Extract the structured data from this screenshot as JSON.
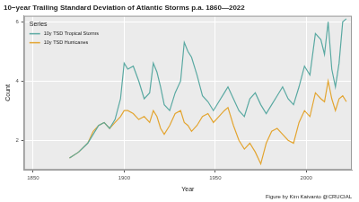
{
  "chart_data": {
    "type": "line",
    "title": "10−year Trailing Standard Deviation of Atlantic Storms p.a. 1860—2022",
    "x_label": "Year",
    "y_label": "Count",
    "legend_title": "Series",
    "caption": "Figure by Kim Kaivanto @CRUCIAL",
    "x": [
      1870,
      1875,
      1880,
      1883,
      1886,
      1889,
      1892,
      1895,
      1898,
      1900,
      1902,
      1905,
      1908,
      1911,
      1914,
      1916,
      1918,
      1920,
      1922,
      1925,
      1928,
      1931,
      1933,
      1935,
      1937,
      1940,
      1943,
      1946,
      1949,
      1952,
      1955,
      1957,
      1960,
      1963,
      1966,
      1969,
      1972,
      1975,
      1978,
      1981,
      1984,
      1987,
      1990,
      1993,
      1996,
      1999,
      2002,
      2005,
      2008,
      2010,
      2012,
      2014,
      2016,
      2018,
      2020,
      2022
    ],
    "series": [
      {
        "name": "10y TSD Tropical Storms",
        "color": "#5aa9a2",
        "values": [
          1.4,
          1.6,
          1.9,
          2.2,
          2.5,
          2.6,
          2.4,
          2.7,
          3.4,
          4.6,
          4.4,
          4.5,
          4.0,
          3.4,
          3.6,
          4.6,
          4.3,
          3.8,
          3.2,
          3.0,
          3.6,
          4.0,
          5.3,
          5.0,
          4.8,
          4.2,
          3.5,
          3.3,
          3.0,
          3.3,
          3.6,
          3.8,
          3.4,
          3.0,
          2.8,
          3.4,
          3.6,
          3.2,
          2.9,
          3.2,
          3.5,
          3.8,
          3.4,
          3.2,
          3.8,
          4.5,
          4.2,
          5.6,
          5.4,
          4.9,
          6.0,
          4.4,
          3.8,
          4.6,
          6.0,
          6.1
        ]
      },
      {
        "name": "10y TSD Hurricanes",
        "color": "#e3a531",
        "values": [
          1.4,
          1.6,
          1.9,
          2.3,
          2.5,
          2.6,
          2.4,
          2.6,
          2.8,
          3.0,
          3.0,
          2.9,
          2.7,
          2.8,
          2.6,
          3.0,
          2.8,
          2.4,
          2.2,
          2.5,
          2.9,
          3.0,
          2.6,
          2.5,
          2.3,
          2.5,
          2.8,
          2.9,
          2.6,
          2.8,
          3.0,
          3.1,
          2.5,
          2.0,
          1.7,
          1.9,
          1.6,
          1.2,
          1.9,
          2.3,
          2.4,
          2.2,
          2.0,
          1.9,
          2.6,
          3.0,
          2.8,
          3.6,
          3.4,
          3.3,
          4.0,
          3.4,
          3.0,
          3.4,
          3.5,
          3.3
        ]
      }
    ],
    "xlim": [
      1845,
      2025
    ],
    "xticks": [
      1850,
      1900,
      1950,
      2000
    ],
    "ylim": [
      1,
      6.2
    ],
    "yticks": [
      2,
      4,
      6
    ],
    "grid": true,
    "legend": "top-left"
  }
}
